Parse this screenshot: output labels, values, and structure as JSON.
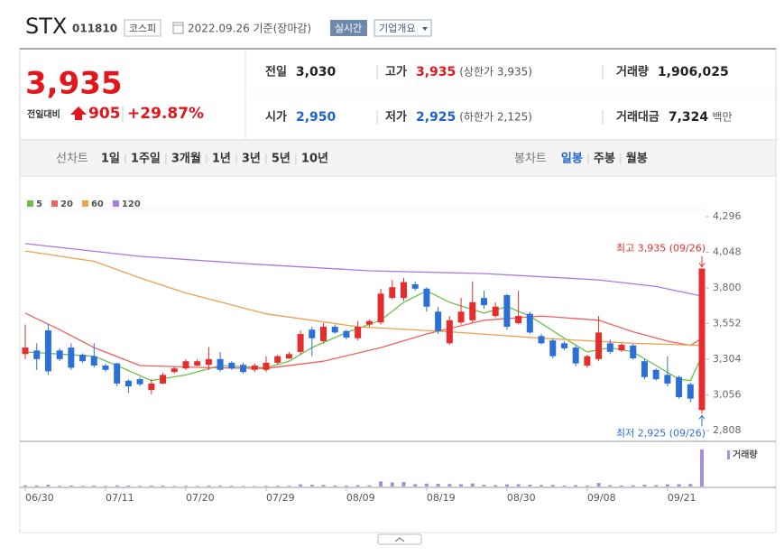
{
  "header": {
    "name": "STX",
    "code": "011810",
    "market": "코스피",
    "date": "2022.09.26 기준(장마감)",
    "realtime": "실시간",
    "overview": "기업개요"
  },
  "quote": {
    "price": "3,935",
    "color": "#e5161b",
    "change_label": "전일대비",
    "change": "905",
    "rate": "+29.87%",
    "fields": [
      {
        "label": "전일",
        "value": "3,030",
        "color": "#222"
      },
      {
        "label": "고가",
        "value": "3,935",
        "color": "#e5161b",
        "note": "(상한가 3,935)"
      },
      {
        "label": "거래량",
        "value": "1,906,025",
        "color": "#222"
      },
      {
        "label": "시가",
        "value": "2,950",
        "color": "#1d62cf"
      },
      {
        "label": "저가",
        "value": "2,925",
        "color": "#1d62cf",
        "note": "(하한가 2,125)"
      },
      {
        "label": "거래대금",
        "value": "7,324",
        "color": "#222",
        "note": "백만"
      }
    ]
  },
  "tabs": {
    "line_chart": "선차트",
    "periods": [
      "1일",
      "1주일",
      "3개월",
      "1년",
      "3년",
      "5년",
      "10년"
    ],
    "candle_chart": "봉차트",
    "candle_periods": [
      {
        "label": "일봉",
        "active": true
      },
      {
        "label": "주봉"
      },
      {
        "label": "월봉"
      }
    ]
  },
  "chart_data": {
    "type": "candlestick",
    "categories": [
      "06/30",
      null,
      null,
      null,
      null,
      null,
      null,
      "07/11",
      null,
      null,
      null,
      null,
      null,
      null,
      "07/20",
      null,
      null,
      null,
      null,
      null,
      null,
      "07/29",
      null,
      null,
      null,
      null,
      null,
      null,
      "08/09",
      null,
      null,
      null,
      null,
      null,
      null,
      "08/19",
      null,
      null,
      null,
      null,
      null,
      null,
      "08/30",
      null,
      null,
      null,
      null,
      null,
      null,
      "09/08",
      null,
      null,
      null,
      null,
      null,
      null,
      "09/21",
      null,
      null,
      null
    ],
    "ohlc": [
      [
        3340,
        3545,
        3305,
        3385
      ],
      [
        3365,
        3415,
        3230,
        3305
      ],
      [
        3505,
        3545,
        3195,
        3220
      ],
      [
        3365,
        3380,
        3290,
        3305
      ],
      [
        3385,
        3415,
        3230,
        3245
      ],
      [
        3335,
        3345,
        3280,
        3290
      ],
      [
        3325,
        3415,
        3245,
        3260
      ],
      [
        3260,
        3275,
        3215,
        3230
      ],
      [
        3275,
        3280,
        3115,
        3135
      ],
      [
        3155,
        3165,
        3070,
        3115
      ],
      [
        3165,
        3180,
        3115,
        3130
      ],
      [
        3090,
        3165,
        3060,
        3135
      ],
      [
        3135,
        3210,
        3130,
        3195
      ],
      [
        3215,
        3255,
        3205,
        3240
      ],
      [
        3240,
        3305,
        3230,
        3290
      ],
      [
        3260,
        3305,
        3255,
        3290
      ],
      [
        3265,
        3390,
        3230,
        3305
      ],
      [
        3305,
        3355,
        3215,
        3230
      ],
      [
        3280,
        3290,
        3230,
        3240
      ],
      [
        3265,
        3280,
        3205,
        3215
      ],
      [
        3230,
        3275,
        3215,
        3260
      ],
      [
        3230,
        3325,
        3215,
        3280
      ],
      [
        3280,
        3335,
        3265,
        3325
      ],
      [
        3310,
        3355,
        3305,
        3340
      ],
      [
        3355,
        3505,
        3340,
        3480
      ],
      [
        3510,
        3530,
        3325,
        3450
      ],
      [
        3430,
        3555,
        3415,
        3530
      ],
      [
        3530,
        3545,
        3480,
        3490
      ],
      [
        3500,
        3510,
        3440,
        3455
      ],
      [
        3450,
        3570,
        3435,
        3530
      ],
      [
        3545,
        3580,
        3530,
        3570
      ],
      [
        3560,
        3795,
        3545,
        3760
      ],
      [
        3730,
        3855,
        3720,
        3805
      ],
      [
        3730,
        3870,
        3710,
        3840
      ],
      [
        3825,
        3845,
        3780,
        3795
      ],
      [
        3795,
        3805,
        3635,
        3670
      ],
      [
        3635,
        3670,
        3480,
        3500
      ],
      [
        3415,
        3605,
        3405,
        3575
      ],
      [
        3560,
        3730,
        3545,
        3635
      ],
      [
        3575,
        3845,
        3555,
        3700
      ],
      [
        3730,
        3780,
        3655,
        3680
      ],
      [
        3605,
        3700,
        3595,
        3670
      ],
      [
        3750,
        3760,
        3510,
        3530
      ],
      [
        3555,
        3780,
        3545,
        3605
      ],
      [
        3620,
        3635,
        3480,
        3490
      ],
      [
        3465,
        3480,
        3405,
        3415
      ],
      [
        3435,
        3450,
        3310,
        3325
      ],
      [
        3415,
        3430,
        3365,
        3380
      ],
      [
        3385,
        3400,
        3255,
        3275
      ],
      [
        3260,
        3335,
        3245,
        3325
      ],
      [
        3305,
        3605,
        3290,
        3490
      ],
      [
        3415,
        3440,
        3340,
        3355
      ],
      [
        3365,
        3415,
        3355,
        3405
      ],
      [
        3400,
        3410,
        3300,
        3310
      ],
      [
        3290,
        3305,
        3165,
        3180
      ],
      [
        3230,
        3240,
        3155,
        3165
      ],
      [
        3195,
        3325,
        3115,
        3135
      ],
      [
        3180,
        3190,
        3030,
        3040
      ],
      [
        3130,
        3140,
        3005,
        3030
      ],
      [
        2950,
        3935,
        2925,
        3935
      ]
    ],
    "up_color": "#e52d2d",
    "down_color": "#2d6fd8",
    "ylim": [
      2808,
      4296
    ],
    "yticks": [
      {
        "value": 2808,
        "label": "2,808"
      },
      {
        "value": 3056,
        "label": "3,056"
      },
      {
        "value": 3304,
        "label": "3,304"
      },
      {
        "value": 3552,
        "label": "3,552"
      },
      {
        "value": 3800,
        "label": "3,800"
      },
      {
        "value": 4048,
        "label": "4,048"
      },
      {
        "value": 4296,
        "label": "4,296"
      }
    ],
    "series": [
      {
        "name": "5",
        "color": "#6cc04a",
        "x": [
          0,
          6,
          8,
          11,
          14,
          17,
          21,
          23,
          25,
          28,
          31,
          33,
          35,
          37,
          40,
          42,
          44,
          47,
          49,
          51,
          53,
          55,
          57,
          58,
          59
        ],
        "values": [
          3355,
          3325,
          3260,
          3155,
          3195,
          3260,
          3245,
          3290,
          3385,
          3490,
          3575,
          3700,
          3780,
          3700,
          3625,
          3670,
          3605,
          3450,
          3355,
          3385,
          3355,
          3260,
          3165,
          3155,
          3325
        ]
      },
      {
        "name": "20",
        "color": "#f0605d",
        "x": [
          0,
          3,
          6,
          10,
          16,
          21,
          26,
          31,
          35,
          40,
          45,
          50,
          53,
          56,
          58,
          59
        ],
        "values": [
          3625,
          3510,
          3385,
          3260,
          3245,
          3240,
          3290,
          3385,
          3480,
          3575,
          3605,
          3575,
          3495,
          3430,
          3400,
          3450
        ]
      },
      {
        "name": "60",
        "color": "#f0a04b",
        "x": [
          0,
          6,
          10,
          14,
          21,
          29,
          37,
          45,
          53,
          59
        ],
        "values": [
          4057,
          3985,
          3870,
          3765,
          3620,
          3530,
          3495,
          3450,
          3415,
          3400
        ]
      },
      {
        "name": "120",
        "color": "#a87be0",
        "x": [
          0,
          10,
          20,
          30,
          40,
          50,
          55,
          59
        ],
        "values": [
          4108,
          4020,
          3965,
          3919,
          3900,
          3856,
          3810,
          3743
        ]
      }
    ],
    "annotations": {
      "high": "최고 3,935 (09/26)",
      "low": "최저 2,925 (09/26)"
    },
    "volume": {
      "name": "거래량",
      "color": "#a58fd8",
      "ylim": [
        0,
        2000000
      ],
      "values": [
        60000,
        55000,
        90000,
        40000,
        50000,
        35000,
        45000,
        30000,
        60000,
        50000,
        35000,
        40000,
        45000,
        30000,
        35000,
        30000,
        50000,
        40000,
        30000,
        30000,
        25000,
        35000,
        40000,
        35000,
        110000,
        90000,
        80000,
        50000,
        45000,
        70000,
        60000,
        260000,
        210000,
        230000,
        120000,
        150000,
        140000,
        130000,
        120000,
        160000,
        80000,
        70000,
        110000,
        120000,
        90000,
        70000,
        80000,
        50000,
        70000,
        50000,
        180000,
        70000,
        50000,
        60000,
        90000,
        70000,
        110000,
        120000,
        130000,
        1906025
      ]
    }
  }
}
